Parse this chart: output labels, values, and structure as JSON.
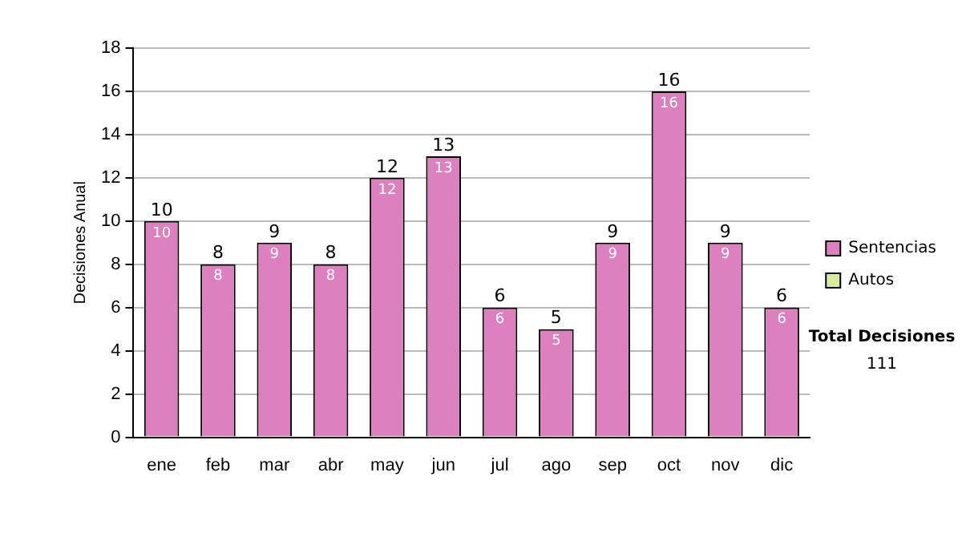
{
  "chart_data": {
    "type": "bar",
    "stacked": true,
    "ylabel": "Decisiones Anual",
    "categories": [
      "ene",
      "feb",
      "mar",
      "abr",
      "may",
      "jun",
      "jul",
      "ago",
      "sep",
      "oct",
      "nov",
      "dic"
    ],
    "series": [
      {
        "name": "Sentencias",
        "color": "#dd80c0",
        "values": [
          10,
          8,
          9,
          8,
          12,
          13,
          6,
          5,
          9,
          16,
          9,
          6
        ],
        "value_labels": [
          "10",
          "8",
          "9",
          "8",
          "12",
          "13",
          "6",
          "5",
          "9",
          "16",
          "9",
          "6"
        ]
      },
      {
        "name": "Autos",
        "color": "#d8eba0",
        "values": [
          0,
          0,
          0,
          0,
          0,
          0,
          0,
          0,
          0,
          0,
          0,
          0
        ],
        "value_labels": [
          null,
          null,
          null,
          null,
          null,
          null,
          null,
          null,
          null,
          null,
          null,
          null
        ]
      }
    ],
    "totals": [
      "10",
      "8",
      "9",
      "8",
      "12",
      "13",
      "6",
      "5",
      "9",
      "16",
      "9",
      "6"
    ],
    "ylim": [
      0,
      18
    ],
    "yticks": [
      0,
      2,
      4,
      6,
      8,
      10,
      12,
      14,
      16,
      18
    ],
    "grid": "y",
    "legend": "right",
    "annotations": [
      "Total Decisiones",
      "111"
    ]
  }
}
